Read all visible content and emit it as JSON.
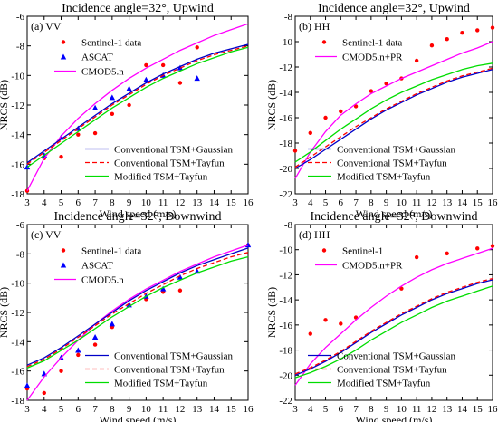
{
  "colors": {
    "sentinel": "#ff0000",
    "ascat": "#0000ff",
    "cmod": "#ff00ff",
    "gaussian": "#0000c8",
    "tayfun": "#ff0000",
    "modified": "#00dd00",
    "axis": "#000000"
  },
  "chart_data": [
    {
      "type": "scatter",
      "title": "Incidence angle=32°, Upwind",
      "panel_label": "(a) VV",
      "xlabel": "Wind speed (m/s)",
      "ylabel": "NRCS (dB)",
      "xlim": [
        3,
        16
      ],
      "ylim": [
        -18,
        -6
      ],
      "xticks": [
        "3",
        "4",
        "5",
        "6",
        "7",
        "8",
        "9",
        "10",
        "11",
        "12",
        "13",
        "14",
        "15",
        "16"
      ],
      "yticks": [
        "-18",
        "-16",
        "-14",
        "-12",
        "-10",
        "-8",
        "-6"
      ],
      "legend_top": [
        "Sentinel-1 data",
        "ASCAT",
        "CMOD5.n"
      ],
      "legend_bottom": [
        "Conventional TSM+Gaussian",
        "Conventional TSM+Tayfun",
        "Modified TSM+Tayfun"
      ],
      "series": [
        {
          "name": "Sentinel-1 data",
          "kind": "points",
          "marker": "dot",
          "color": "#ff0000",
          "x": [
            3,
            4,
            5,
            6,
            7,
            8,
            9,
            10,
            11,
            12,
            13
          ],
          "y": [
            -17.8,
            -15.6,
            -15.5,
            -14,
            -13.9,
            -12.6,
            -12,
            -9.3,
            -9.3,
            -10.5,
            -8.1
          ]
        },
        {
          "name": "ASCAT",
          "kind": "points",
          "marker": "triangle",
          "color": "#0000ff",
          "x": [
            3,
            4,
            5,
            6,
            7,
            8,
            9,
            10,
            11,
            12,
            13
          ],
          "y": [
            -16.2,
            -15.4,
            -14.2,
            -13.6,
            -12.2,
            -11.5,
            -10.9,
            -10.3,
            -10,
            -9.5,
            -10.2
          ]
        },
        {
          "name": "CMOD5.n",
          "kind": "line",
          "color": "#ff00ff",
          "x": [
            3,
            4,
            5,
            6,
            7,
            8,
            9,
            10,
            11,
            12,
            13,
            14,
            15,
            16
          ],
          "y": [
            -17.8,
            -15.6,
            -14.1,
            -12.9,
            -11.9,
            -11,
            -10.2,
            -9.5,
            -8.9,
            -8.3,
            -7.8,
            -7.3,
            -6.9,
            -6.5
          ]
        },
        {
          "name": "Conventional TSM+Gaussian",
          "kind": "line",
          "color": "#0000c8",
          "x": [
            3,
            4,
            5,
            6,
            7,
            8,
            9,
            10,
            11,
            12,
            13,
            14,
            15,
            16
          ],
          "y": [
            -15.9,
            -15.1,
            -14.3,
            -13.5,
            -12.7,
            -11.9,
            -11.2,
            -10.5,
            -9.9,
            -9.4,
            -8.9,
            -8.5,
            -8.2,
            -7.9
          ]
        },
        {
          "name": "Conventional TSM+Tayfun",
          "kind": "line",
          "color": "#ff0000",
          "dashed": true,
          "x": [
            3,
            4,
            5,
            6,
            7,
            8,
            9,
            10,
            11,
            12,
            13,
            14,
            15,
            16
          ],
          "y": [
            -16,
            -15.2,
            -14.4,
            -13.6,
            -12.8,
            -12,
            -11.3,
            -10.6,
            -10,
            -9.5,
            -9,
            -8.6,
            -8.3,
            -8
          ]
        },
        {
          "name": "Modified TSM+Tayfun",
          "kind": "line",
          "color": "#00dd00",
          "x": [
            3,
            4,
            5,
            6,
            7,
            8,
            9,
            10,
            11,
            12,
            13,
            14,
            15,
            16
          ],
          "y": [
            -16.2,
            -15.4,
            -14.6,
            -13.8,
            -13,
            -12.2,
            -11.5,
            -10.8,
            -10.2,
            -9.7,
            -9.2,
            -8.8,
            -8.4,
            -8.1
          ]
        }
      ]
    },
    {
      "type": "scatter",
      "title": "Incidence angle=32°, Upwind",
      "panel_label": "(b) HH",
      "xlabel": "Wind speed (m/s)",
      "ylabel": "NRCS (dB)",
      "xlim": [
        3,
        16
      ],
      "ylim": [
        -22,
        -8
      ],
      "xticks": [
        "3",
        "4",
        "5",
        "6",
        "7",
        "8",
        "9",
        "10",
        "11",
        "12",
        "13",
        "14",
        "15",
        "16"
      ],
      "yticks": [
        "-22",
        "-20",
        "-18",
        "-16",
        "-14",
        "-12",
        "-10",
        "-8"
      ],
      "legend_top": [
        "Sentinel-1 data",
        "CMOD5.n+PR"
      ],
      "legend_bottom": [
        "Conventional TSM+Gaussian",
        "Conventional TSM+Tayfun",
        "Modified TSM+Tayfun"
      ],
      "series": [
        {
          "name": "Sentinel-1 data",
          "kind": "points",
          "marker": "dot",
          "color": "#ff0000",
          "x": [
            3,
            4,
            5,
            6,
            7,
            8,
            9,
            10,
            11,
            12,
            13,
            14,
            15,
            16
          ],
          "y": [
            -18.6,
            -17.2,
            -16,
            -15.5,
            -15.1,
            -13.9,
            -13.3,
            -12.9,
            -11.5,
            -10.3,
            -9.8,
            -9.3,
            -9.1,
            -8.9
          ]
        },
        {
          "name": "CMOD5.n+PR",
          "kind": "line",
          "color": "#ff00ff",
          "x": [
            3,
            4,
            5,
            6,
            7,
            8,
            9,
            10,
            11,
            12,
            13,
            14,
            15,
            16
          ],
          "y": [
            -20.8,
            -18.7,
            -17.1,
            -15.8,
            -14.9,
            -14.1,
            -13.5,
            -12.9,
            -12.4,
            -11.9,
            -11.4,
            -10.9,
            -10.5,
            -10
          ]
        },
        {
          "name": "Conventional TSM+Gaussian",
          "kind": "line",
          "color": "#0000c8",
          "x": [
            3,
            4,
            5,
            6,
            7,
            8,
            9,
            10,
            11,
            12,
            13,
            14,
            15,
            16
          ],
          "y": [
            -20,
            -19.3,
            -18.5,
            -17.7,
            -16.9,
            -16.1,
            -15.4,
            -14.8,
            -14.2,
            -13.7,
            -13.2,
            -12.8,
            -12.5,
            -12.2
          ]
        },
        {
          "name": "Conventional TSM+Tayfun",
          "kind": "line",
          "color": "#ff0000",
          "dashed": true,
          "x": [
            3,
            4,
            5,
            6,
            7,
            8,
            9,
            10,
            11,
            12,
            13,
            14,
            15,
            16
          ],
          "y": [
            -19.9,
            -19.1,
            -18.3,
            -17.5,
            -16.7,
            -16,
            -15.3,
            -14.7,
            -14.1,
            -13.6,
            -13.1,
            -12.7,
            -12.4,
            -12.1
          ]
        },
        {
          "name": "Modified TSM+Tayfun",
          "kind": "line",
          "color": "#00dd00",
          "x": [
            3,
            4,
            5,
            6,
            7,
            8,
            9,
            10,
            11,
            12,
            13,
            14,
            15,
            16
          ],
          "y": [
            -19.5,
            -18.7,
            -17.8,
            -16.9,
            -16.1,
            -15.3,
            -14.6,
            -14,
            -13.5,
            -13,
            -12.6,
            -12.2,
            -11.9,
            -11.7
          ]
        }
      ]
    },
    {
      "type": "scatter",
      "title": "Incidence angle=32°, Downwind",
      "panel_label": "(c) VV",
      "xlabel": "Wind speed (m/s)",
      "ylabel": "NRCS (dB)",
      "xlim": [
        3,
        16
      ],
      "ylim": [
        -18,
        -6
      ],
      "xticks": [
        "3",
        "4",
        "5",
        "6",
        "7",
        "8",
        "9",
        "10",
        "11",
        "12",
        "13",
        "14",
        "15",
        "16"
      ],
      "yticks": [
        "-18",
        "-16",
        "-14",
        "-12",
        "-10",
        "-8",
        "-6"
      ],
      "legend_top": [
        "Sentinel-1 data",
        "ASCAT",
        "CMOD5.n"
      ],
      "legend_bottom": [
        "Conventional TSM+Gaussian",
        "Conventional TSM+Tayfun",
        "Modified TSM+Tayfun"
      ],
      "series": [
        {
          "name": "Sentinel-1 data",
          "kind": "points",
          "marker": "dot",
          "color": "#ff0000",
          "x": [
            3,
            4,
            5,
            6,
            7,
            8,
            9,
            10,
            11,
            12,
            16
          ],
          "y": [
            -17.2,
            -17.5,
            -16,
            -14.9,
            -14.2,
            -13,
            -11.5,
            -11.1,
            -10.6,
            -10.5,
            -7.4
          ]
        },
        {
          "name": "ASCAT",
          "kind": "points",
          "marker": "triangle",
          "color": "#0000ff",
          "x": [
            3,
            4,
            5,
            6,
            7,
            8,
            9,
            10,
            11,
            12,
            13,
            16
          ],
          "y": [
            -17,
            -16.2,
            -15.1,
            -14.6,
            -13.7,
            -12.8,
            -11.5,
            -10.9,
            -10.4,
            -9.6,
            -9.2,
            -7.4
          ]
        },
        {
          "name": "CMOD5.n",
          "kind": "line",
          "color": "#ff00ff",
          "x": [
            3,
            4,
            5,
            6,
            7,
            8,
            9,
            10,
            11,
            12,
            13,
            14,
            15,
            16
          ],
          "y": [
            -18,
            -16.4,
            -15.1,
            -13.9,
            -12.8,
            -11.9,
            -11.1,
            -10.4,
            -9.8,
            -9.2,
            -8.7,
            -8.2,
            -7.8,
            -7.4
          ]
        },
        {
          "name": "Conventional TSM+Gaussian",
          "kind": "line",
          "color": "#0000c8",
          "x": [
            3,
            4,
            5,
            6,
            7,
            8,
            9,
            10,
            11,
            12,
            13,
            14,
            15,
            16
          ],
          "y": [
            -15.6,
            -15.1,
            -14.4,
            -13.6,
            -12.8,
            -12,
            -11.2,
            -10.5,
            -9.9,
            -9.3,
            -8.8,
            -8.4,
            -8,
            -7.6
          ]
        },
        {
          "name": "Conventional TSM+Tayfun",
          "kind": "line",
          "color": "#ff0000",
          "dashed": true,
          "x": [
            3,
            4,
            5,
            6,
            7,
            8,
            9,
            10,
            11,
            12,
            13,
            14,
            15,
            16
          ],
          "y": [
            -15.7,
            -15.2,
            -14.5,
            -13.7,
            -12.9,
            -12.1,
            -11.4,
            -10.7,
            -10.1,
            -9.5,
            -9,
            -8.6,
            -8.2,
            -7.9
          ]
        },
        {
          "name": "Modified TSM+Tayfun",
          "kind": "line",
          "color": "#00dd00",
          "x": [
            3,
            4,
            5,
            6,
            7,
            8,
            9,
            10,
            11,
            12,
            13,
            14,
            15,
            16
          ],
          "y": [
            -15.8,
            -15.3,
            -14.6,
            -13.9,
            -13.1,
            -12.3,
            -11.6,
            -10.9,
            -10.3,
            -9.8,
            -9.3,
            -8.9,
            -8.5,
            -8.2
          ]
        }
      ]
    },
    {
      "type": "scatter",
      "title": "Incidence angle=32°, Downwind",
      "panel_label": "(d) HH",
      "xlabel": "Wind speed (m/s)",
      "ylabel": "NRCS (dB)",
      "xlim": [
        3,
        16
      ],
      "ylim": [
        -22,
        -8
      ],
      "xticks": [
        "3",
        "4",
        "5",
        "6",
        "7",
        "8",
        "9",
        "10",
        "11",
        "12",
        "13",
        "14",
        "15",
        "16"
      ],
      "yticks": [
        "-22",
        "-20",
        "-18",
        "-16",
        "-14",
        "-12",
        "-10",
        "-8"
      ],
      "legend_top": [
        "Sentinel-1",
        "CMOD5.n+PR"
      ],
      "legend_bottom": [
        "Conventional TSM+Gaussian",
        "Conventional TSM+Tayfun",
        "Modified TSM+Tayfun"
      ],
      "series": [
        {
          "name": "Sentinel-1",
          "kind": "points",
          "marker": "dot",
          "color": "#ff0000",
          "x": [
            4,
            5,
            6,
            7,
            10,
            11,
            13,
            15,
            16
          ],
          "y": [
            -16.7,
            -15.6,
            -15.9,
            -15.4,
            -13.1,
            -10.6,
            -10.3,
            -9.9,
            -9.7
          ]
        },
        {
          "name": "CMOD5.n+PR",
          "kind": "line",
          "color": "#ff00ff",
          "x": [
            3,
            4,
            5,
            6,
            7,
            8,
            9,
            10,
            11,
            12,
            13,
            14,
            15,
            16
          ],
          "y": [
            -20.8,
            -19.1,
            -17.8,
            -16.7,
            -15.6,
            -14.6,
            -13.7,
            -12.9,
            -12.2,
            -11.6,
            -11.1,
            -10.7,
            -10.3,
            -9.9
          ]
        },
        {
          "name": "Conventional TSM+Gaussian",
          "kind": "line",
          "color": "#0000c8",
          "x": [
            3,
            4,
            5,
            6,
            7,
            8,
            9,
            10,
            11,
            12,
            13,
            14,
            15,
            16
          ],
          "y": [
            -20,
            -19.5,
            -18.9,
            -18.2,
            -17.4,
            -16.6,
            -15.9,
            -15.2,
            -14.6,
            -14,
            -13.5,
            -13.1,
            -12.7,
            -12.4
          ]
        },
        {
          "name": "Conventional TSM+Tayfun",
          "kind": "line",
          "color": "#ff0000",
          "dashed": true,
          "x": [
            3,
            4,
            5,
            6,
            7,
            8,
            9,
            10,
            11,
            12,
            13,
            14,
            15,
            16
          ],
          "y": [
            -19.9,
            -19.4,
            -18.8,
            -18.1,
            -17.3,
            -16.5,
            -15.8,
            -15.1,
            -14.5,
            -13.9,
            -13.4,
            -13,
            -12.6,
            -12.3
          ]
        },
        {
          "name": "Modified TSM+Tayfun",
          "kind": "line",
          "color": "#00dd00",
          "x": [
            3,
            4,
            5,
            6,
            7,
            8,
            9,
            10,
            11,
            12,
            13,
            14,
            15,
            16
          ],
          "y": [
            -20.2,
            -19.8,
            -19.3,
            -18.7,
            -18,
            -17.2,
            -16.5,
            -15.8,
            -15.2,
            -14.6,
            -14.1,
            -13.7,
            -13.3,
            -12.9
          ]
        }
      ]
    }
  ]
}
